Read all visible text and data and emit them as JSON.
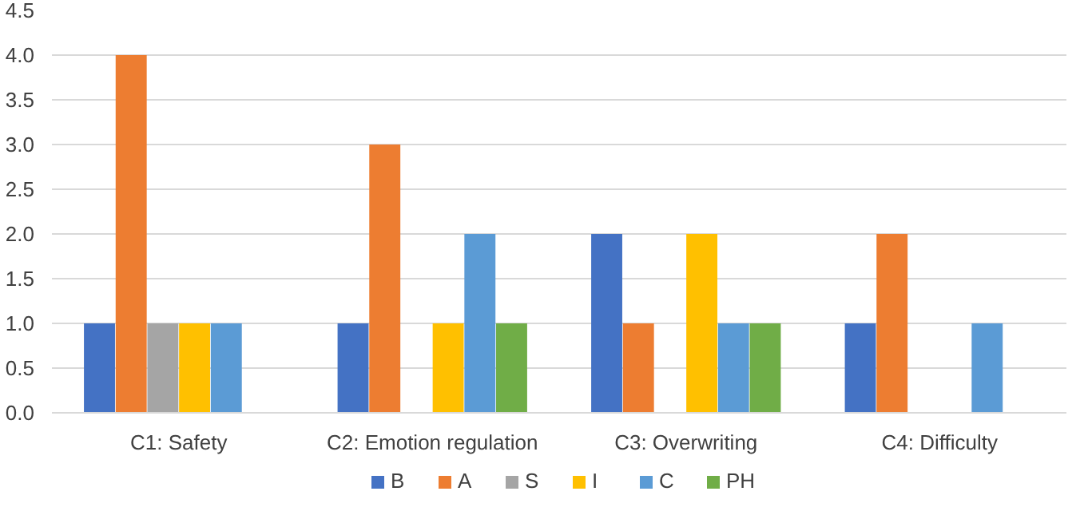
{
  "chart_data": {
    "type": "bar",
    "categories": [
      "C1: Safety",
      "C2: Emotion regulation",
      "C3: Overwriting",
      "C4: Difficulty"
    ],
    "series": [
      {
        "name": "B",
        "color": "#4472c4",
        "values": [
          1,
          1,
          2,
          1
        ]
      },
      {
        "name": "A",
        "color": "#ed7d31",
        "values": [
          4,
          3,
          1,
          2
        ]
      },
      {
        "name": "S",
        "color": "#a5a5a5",
        "values": [
          1,
          null,
          null,
          null
        ]
      },
      {
        "name": "I",
        "color": "#ffc000",
        "values": [
          1,
          1,
          2,
          null
        ]
      },
      {
        "name": "C",
        "color": "#5b9bd5",
        "values": [
          1,
          2,
          1,
          1
        ]
      },
      {
        "name": "PH",
        "color": "#70ad47",
        "values": [
          null,
          1,
          1,
          null
        ]
      }
    ],
    "ylim": [
      0,
      4.5
    ],
    "yticks": [
      {
        "value": 0,
        "label": "0.0"
      },
      {
        "value": 0.5,
        "label": "0.5"
      },
      {
        "value": 1,
        "label": "1.0"
      },
      {
        "value": 1.5,
        "label": "1.5"
      },
      {
        "value": 2,
        "label": "2.0"
      },
      {
        "value": 2.5,
        "label": "2.5"
      },
      {
        "value": 3,
        "label": "3.0"
      },
      {
        "value": 3.5,
        "label": "3.5"
      },
      {
        "value": 4,
        "label": "4.0"
      },
      {
        "value": 4.5,
        "label": "4.5"
      }
    ],
    "grid": "y",
    "legend": "bottom"
  }
}
